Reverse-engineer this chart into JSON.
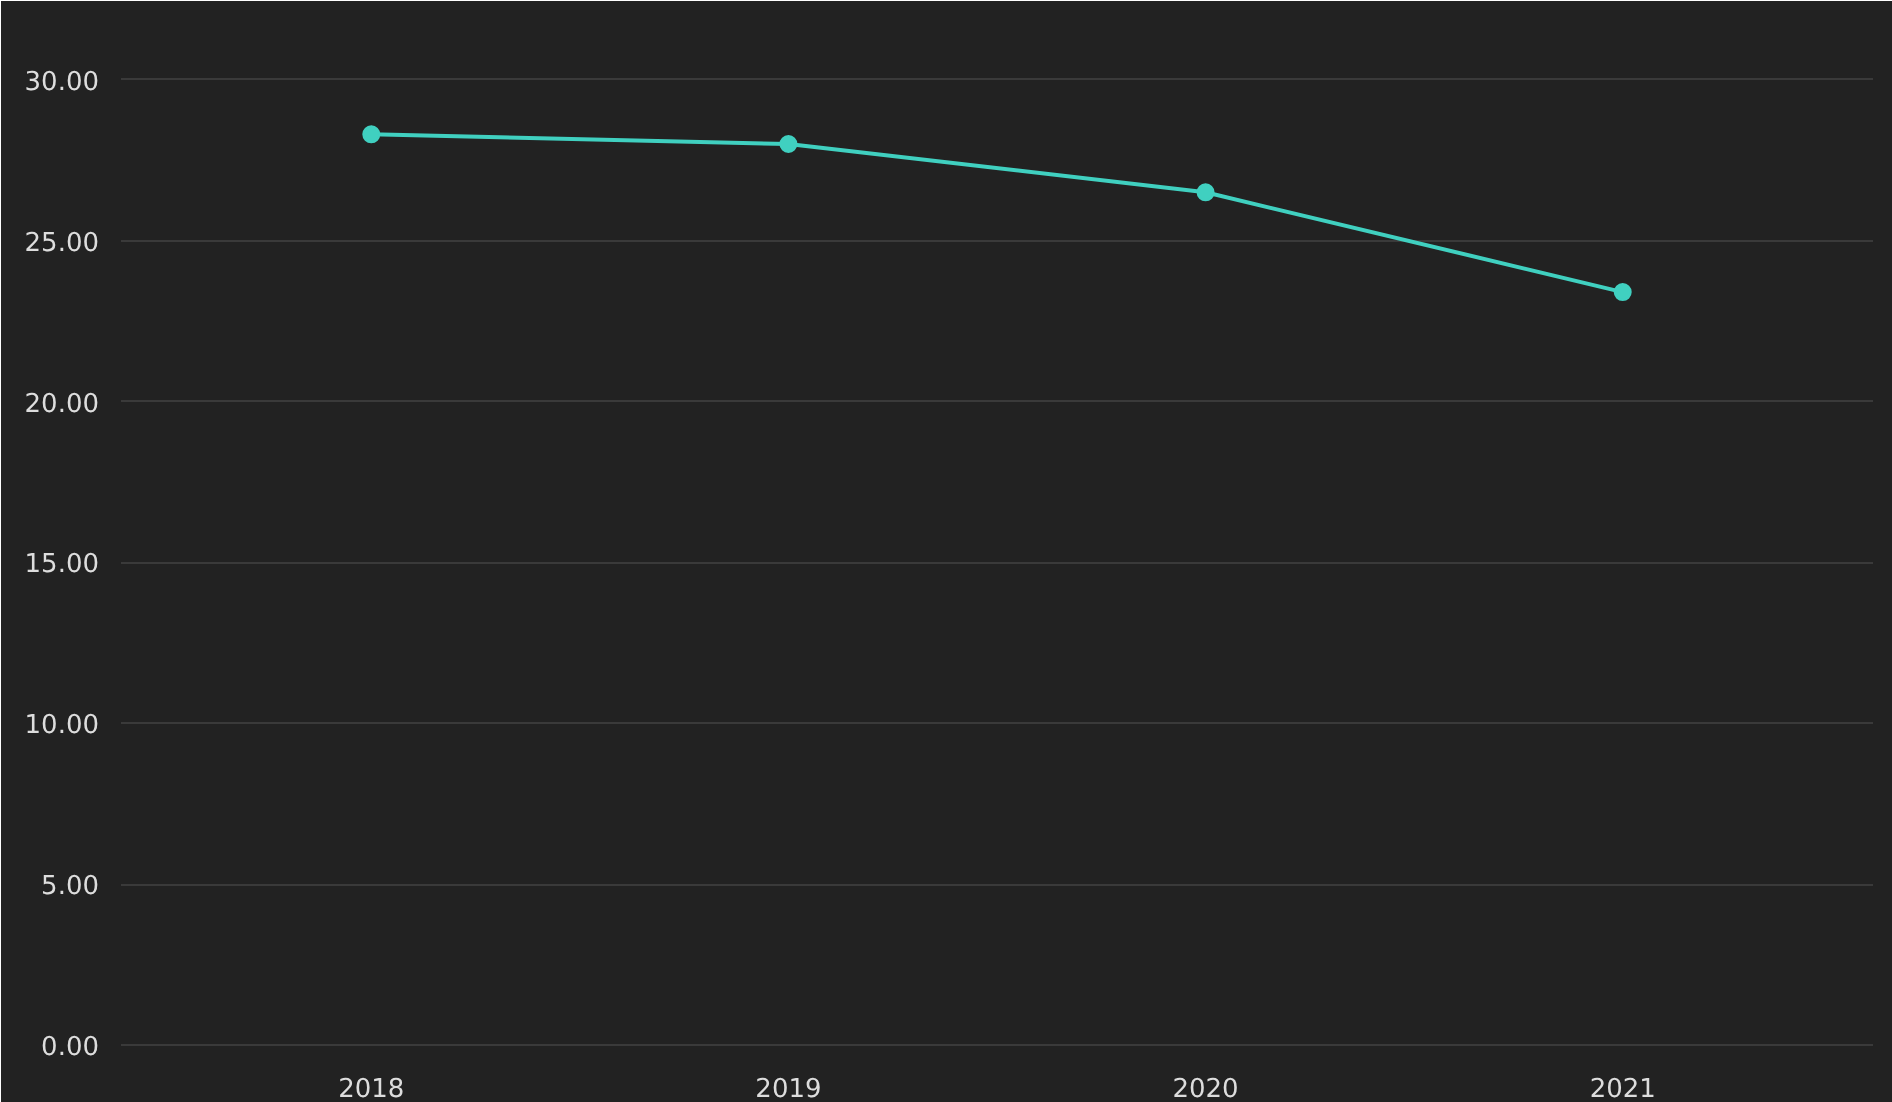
{
  "chart_data": {
    "type": "line",
    "categories": [
      "2018",
      "2019",
      "2020",
      "2021"
    ],
    "series": [
      {
        "color": "#40d0c0",
        "values": [
          28.3,
          28.0,
          26.5,
          23.4
        ]
      }
    ],
    "ylim": [
      0,
      30
    ],
    "yticks": [
      {
        "value": 0,
        "label": "0.00"
      },
      {
        "value": 5,
        "label": "5.00"
      },
      {
        "value": 10,
        "label": "10.00"
      },
      {
        "value": 15,
        "label": "15.00"
      },
      {
        "value": 20,
        "label": "20.00"
      },
      {
        "value": 25,
        "label": "25.00"
      },
      {
        "value": 30,
        "label": "30.00"
      }
    ],
    "grid": "y",
    "marker": "circle",
    "line_style": "solid"
  }
}
